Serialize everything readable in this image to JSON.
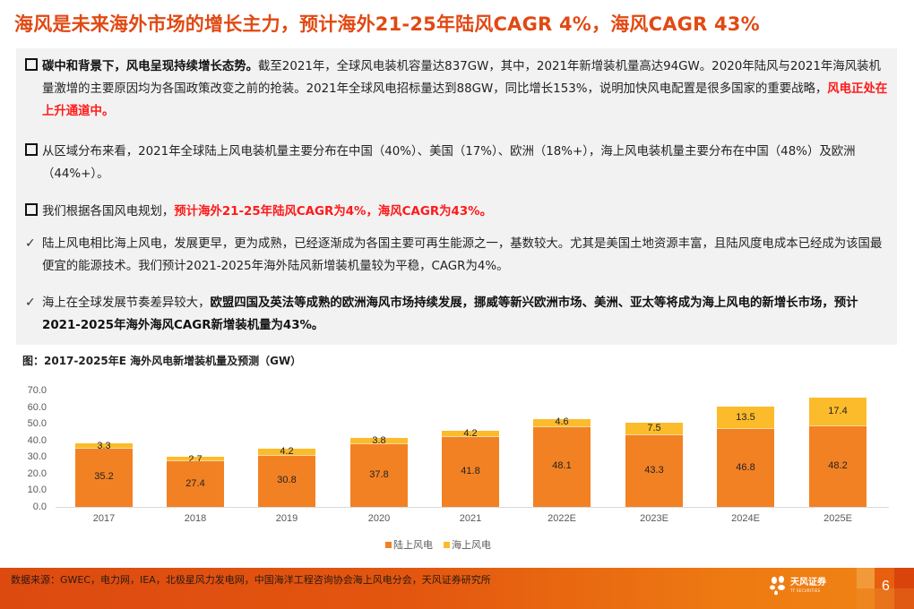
{
  "page": {
    "title": "海风是未来海外市场的增长主力，预计海外21-25年陆风CAGR 4%，海风CAGR 43%",
    "page_number": "6"
  },
  "bullets": [
    {
      "marker": "square",
      "segments": [
        {
          "text": "碳中和背景下，风电呈现持续增长态势。",
          "style": "bold"
        },
        {
          "text": "截至2021年，全球风电装机容量达837GW，其中，2021年新增装机量高达94GW。2020年陆风与2021年海风装机量激增的主要原因均为各国政策改变之前的抢装。2021年全球风电招标量达到88GW，同比增长153%，说明加快风电配置是很多国家的重要战略，",
          "style": "normal"
        },
        {
          "text": "风电正处在上升通道中。",
          "style": "red"
        }
      ]
    },
    {
      "marker": "square",
      "segments": [
        {
          "text": "从区域分布来看，2021年全球陆上风电装机量主要分布在中国（40%）、美国（17%）、欧洲（18%+），海上风电装机量主要分布在中国（48%）及欧洲（44%+）。",
          "style": "normal"
        }
      ]
    },
    {
      "marker": "square",
      "segments": [
        {
          "text": "我们根据各国风电规划，",
          "style": "normal"
        },
        {
          "text": "预计海外21-25年陆风CAGR为4%，海风CAGR为43%。",
          "style": "red"
        }
      ]
    },
    {
      "marker": "check",
      "segments": [
        {
          "text": "陆上风电相比海上风电，发展更早，更为成熟，已经逐渐成为各国主要可再生能源之一，基数较大。尤其是美国土地资源丰富，且陆风度电成本已经成为该国最便宜的能源技术。我们预计2021-2025年海外陆风新增装机量较为平稳，CAGR为4%。",
          "style": "normal"
        }
      ]
    },
    {
      "marker": "check",
      "segments": [
        {
          "text": "海上在全球发展节奏差异较大，",
          "style": "normal"
        },
        {
          "text": "欧盟四国及英法等成熟的欧洲海风市场持续发展，挪威等新兴欧洲市场、美洲、亚太等将成为海上风电的新增长市场，预计2021-2025年海外海风CAGR新增装机量为43%。",
          "style": "bold"
        }
      ]
    }
  ],
  "chart_data": {
    "type": "bar",
    "stacked": true,
    "title": "图：2017-2025年E 海外风电新增装机量及预测（GW）",
    "xlabel": "",
    "ylabel": "",
    "categories": [
      "2017",
      "2018",
      "2019",
      "2020",
      "2021",
      "2022E",
      "2023E",
      "2024E",
      "2025E"
    ],
    "series": [
      {
        "name": "陆上风电",
        "color": "#f28124",
        "values": [
          35.2,
          27.4,
          30.8,
          37.8,
          41.8,
          48.1,
          43.3,
          46.8,
          48.2
        ]
      },
      {
        "name": "海上风电",
        "color": "#fbbb2b",
        "values": [
          3.3,
          2.7,
          4.2,
          3.8,
          4.2,
          4.6,
          7.5,
          13.5,
          17.4
        ]
      }
    ],
    "ylim": [
      0,
      70
    ],
    "yticks": [
      "0.0",
      "10.0",
      "20.0",
      "30.0",
      "40.0",
      "50.0",
      "60.0",
      "70.0"
    ],
    "grid": false,
    "legend_position": "bottom",
    "data_labels": true
  },
  "legend": [
    {
      "label": "陆上风电",
      "color": "#f28124"
    },
    {
      "label": "海上风电",
      "color": "#fbbb2b"
    }
  ],
  "footer": {
    "source": "数据来源：GWEC，电力网，IEA，北极星风力发电网，中国海洋工程咨询协会海上风电分会，天风证券研究所",
    "logo_cn": "天风证券",
    "logo_en": "TF SECURITIES"
  },
  "colors": {
    "title": "#e04a14",
    "highlight_red": "#ff1a1a",
    "panel_bg": "#f2f2f2",
    "footer_bg": "#e3560f"
  }
}
